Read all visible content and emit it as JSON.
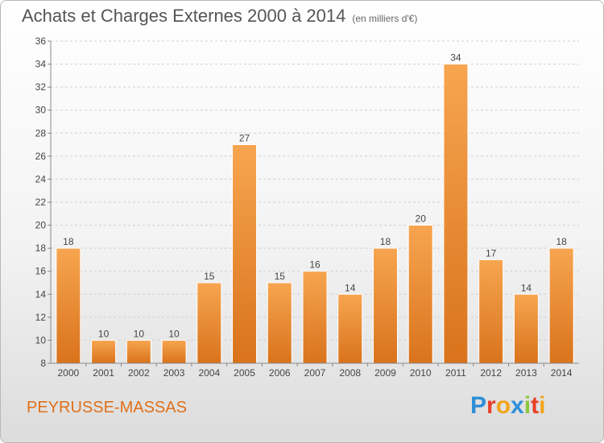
{
  "chart_data": {
    "type": "bar",
    "title": "Achats et Charges Externes 2000 à 2014",
    "subtitle": "(en milliers d'€)",
    "categories": [
      "2000",
      "2001",
      "2002",
      "2003",
      "2004",
      "2005",
      "2006",
      "2007",
      "2008",
      "2009",
      "2010",
      "2011",
      "2012",
      "2013",
      "2014"
    ],
    "values": [
      18,
      10,
      10,
      10,
      15,
      27,
      15,
      16,
      14,
      18,
      20,
      34,
      17,
      14,
      18
    ],
    "ylim": [
      8,
      36
    ],
    "yticks": [
      8,
      10,
      12,
      14,
      16,
      18,
      20,
      22,
      24,
      26,
      28,
      30,
      32,
      34,
      36
    ],
    "grid": true,
    "bar_color": "#f0913a"
  },
  "footer": {
    "commune": "PEYRUSSE-MASSAS",
    "logo_letters": [
      {
        "ch": "P",
        "color": "#2f8fd8"
      },
      {
        "ch": "r",
        "color": "#e8402a"
      },
      {
        "ch": "o",
        "color": "#f2a51a"
      },
      {
        "ch": "x",
        "color": "#2f8fd8"
      },
      {
        "ch": "i",
        "color": "#8cc63f"
      },
      {
        "ch": "t",
        "color": "#e8402a"
      },
      {
        "ch": "i",
        "color": "#f2a51a"
      }
    ]
  }
}
